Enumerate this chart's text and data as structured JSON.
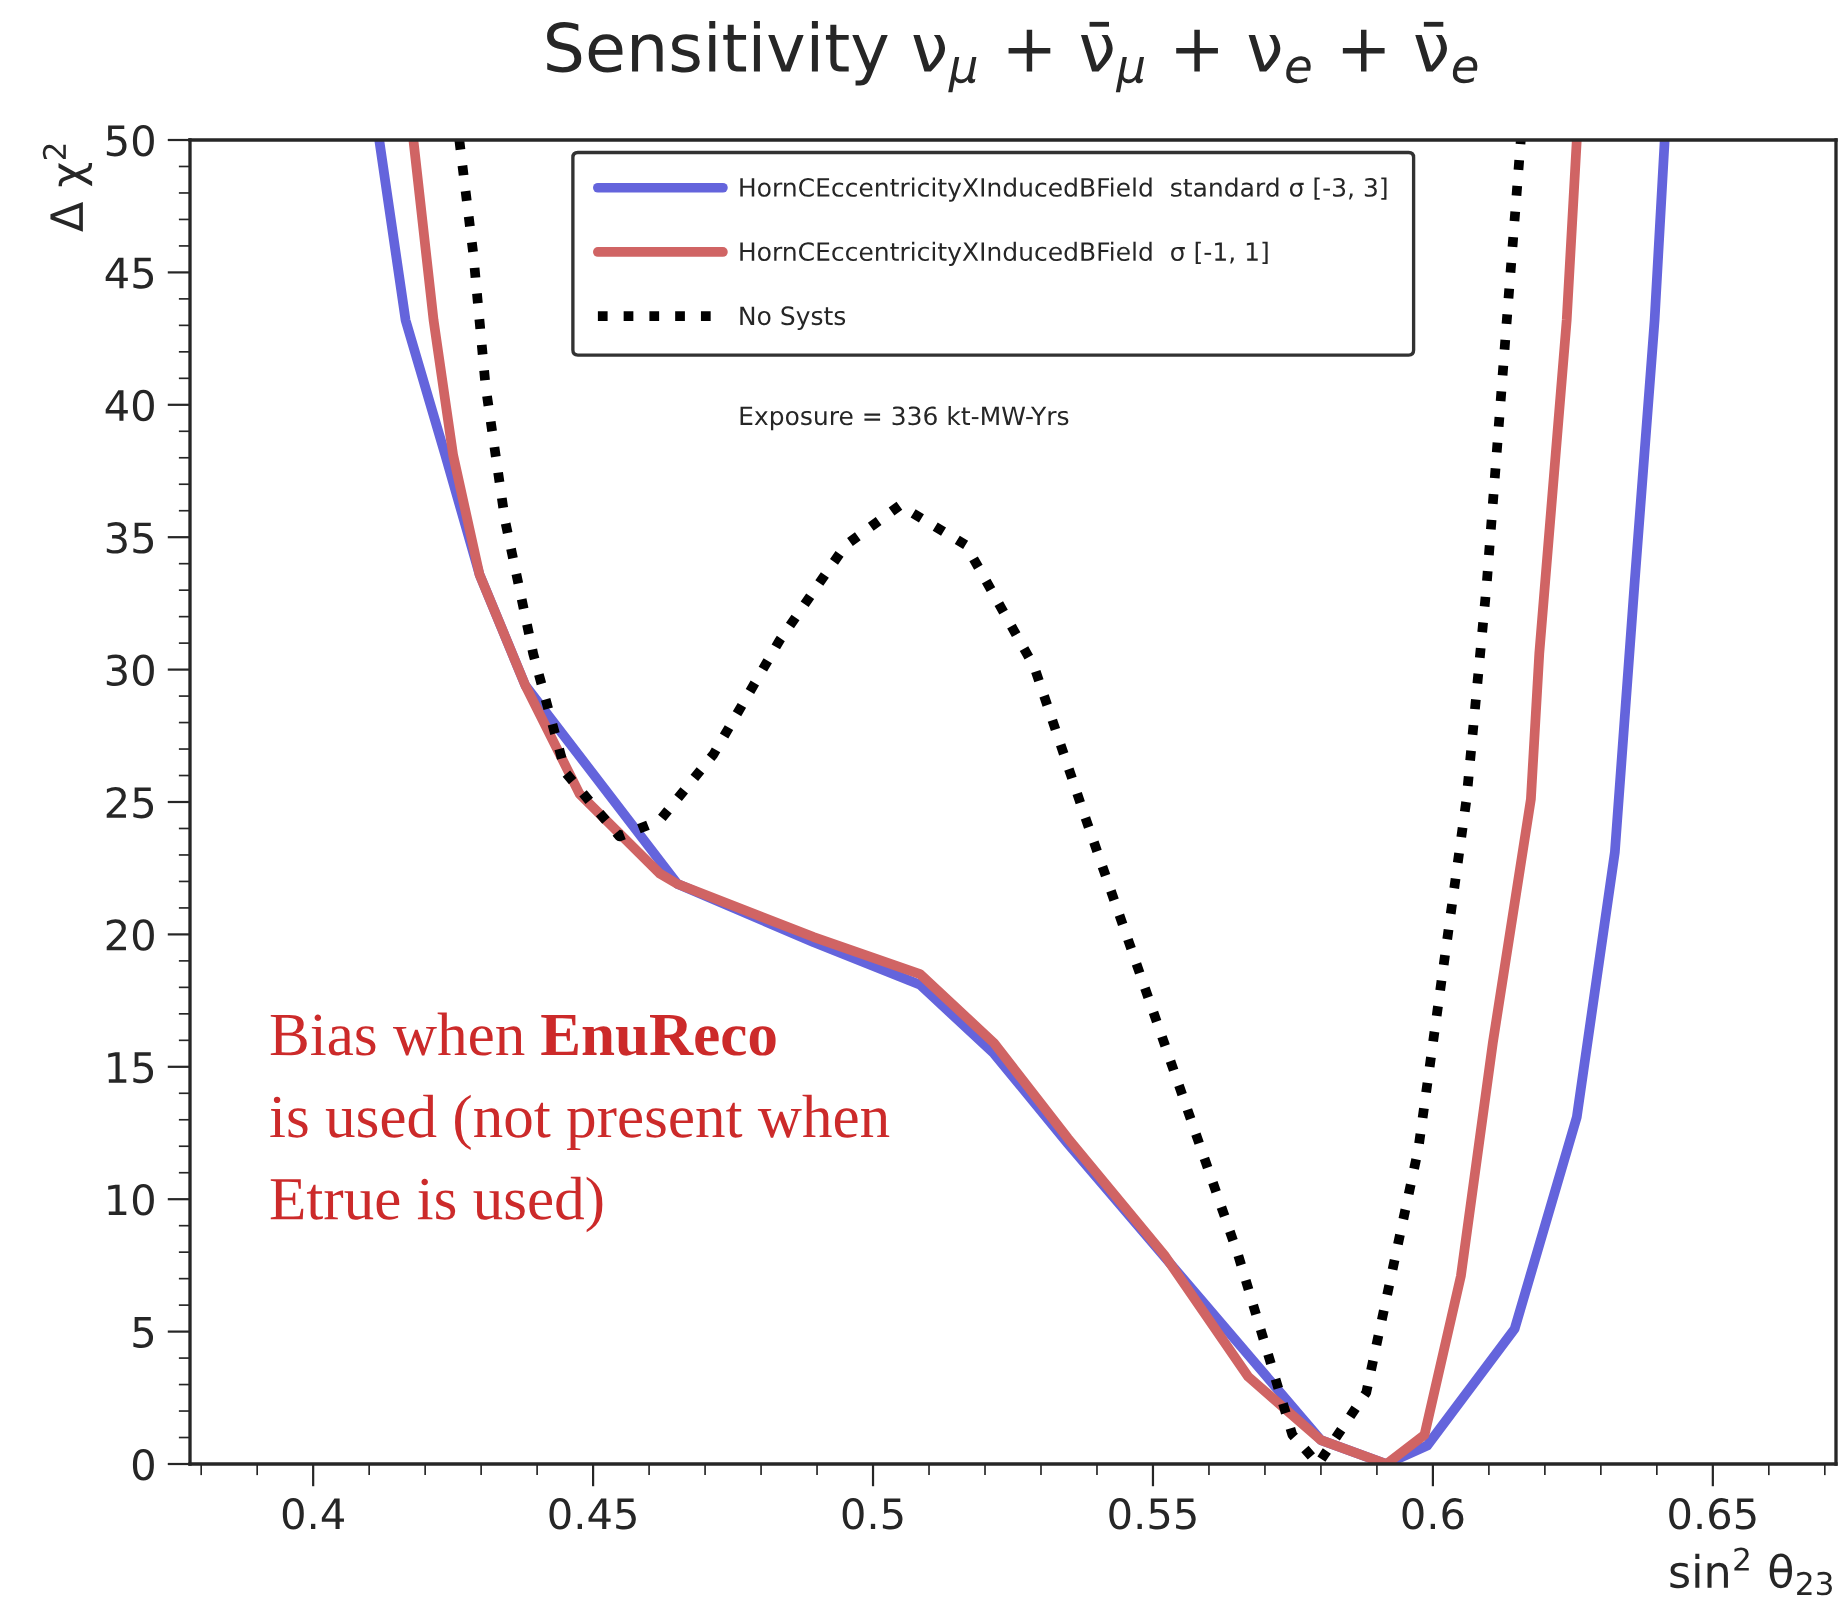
{
  "chart_data": {
    "type": "line",
    "title": "Sensitivity ν$_{μ}$ + ν̄$_{μ}$ + ν$_{e}$ + ν̄$_{e}$",
    "xlabel": "sin$^{2}$ θ$_{23}$",
    "ylabel": "Δ χ$^{2}$",
    "xlim": [
      0.378,
      0.672
    ],
    "ylim": [
      0,
      50
    ],
    "xticks": [
      0.4,
      0.45,
      0.5,
      0.55,
      0.6,
      0.65
    ],
    "yticks": [
      0,
      5,
      10,
      15,
      20,
      25,
      30,
      35,
      40,
      45,
      50
    ],
    "grid": false,
    "legend": "top",
    "marker": "none",
    "series": [
      {
        "name": "HornCEccentricityXInducedBField  standard σ [-3, 3]",
        "color": "#6464dc",
        "line_style": "solid",
        "x": [
          0.4118,
          0.4165,
          0.4236,
          0.4297,
          0.4379,
          0.4476,
          0.4619,
          0.4651,
          0.4894,
          0.5084,
          0.5216,
          0.5348,
          0.552,
          0.567,
          0.58,
          0.5917,
          0.599,
          0.6146,
          0.6257,
          0.6325,
          0.636,
          0.6396,
          0.6414
        ],
        "values": [
          50,
          43.2,
          38.1,
          33.6,
          29.4,
          null,
          null,
          21.9,
          19.7,
          18.1,
          15.5,
          12.1,
          null,
          null,
          0.9,
          0,
          0.7,
          5.1,
          13.1,
          23.1,
          33.2,
          43.2,
          50
        ]
      },
      {
        "name": "HornCEccentricityXInducedBField  σ [-1, 1]",
        "color": "#d06464",
        "line_style": "solid",
        "x": [
          0.4179,
          0.4215,
          0.425,
          0.4297,
          0.4379,
          0.4476,
          0.4619,
          0.4651,
          0.4894,
          0.5084,
          0.5216,
          0.5348,
          0.552,
          0.567,
          0.58,
          0.5917,
          0.5985,
          0.605,
          0.6107,
          0.6175,
          0.619,
          0.6239,
          0.6257
        ],
        "values": [
          50,
          43.2,
          38.1,
          33.6,
          29.4,
          25.3,
          22.3,
          21.9,
          19.9,
          18.5,
          15.9,
          12.3,
          7.9,
          3.3,
          0.9,
          0,
          1.1,
          7.1,
          15.9,
          25.1,
          30.6,
          43.2,
          50
        ]
      },
      {
        "name": "No Systs",
        "color": "#000000",
        "line_style": "dotted",
        "x": [
          0.4261,
          0.4286,
          0.4308,
          0.4343,
          0.4393,
          0.4451,
          0.4547,
          0.4619,
          0.4715,
          0.4833,
          0.4951,
          0.5048,
          0.5166,
          0.5288,
          0.5381,
          0.552,
          0.5652,
          0.5749,
          0.5795,
          0.5881,
          0.5974,
          0.606,
          0.6096,
          0.6132,
          0.6157
        ],
        "values": [
          50,
          45.7,
          40.7,
          35.6,
          30.6,
          26.1,
          23.7,
          24.3,
          26.8,
          31.1,
          34.7,
          36.2,
          34.7,
          30.1,
          24.3,
          15.9,
          7.9,
          1.1,
          0,
          2.7,
          11.9,
          25.1,
          33.2,
          43.2,
          50
        ]
      }
    ],
    "annotations": [
      "Exposure = 336 kt-MW-Yrs",
      "Bias when EnuReco\nis used (not present when\nEtrue is used)"
    ]
  }
}
